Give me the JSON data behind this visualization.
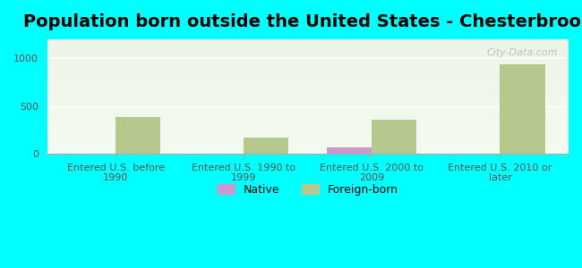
{
  "title": "Population born outside the United States - Chesterbrook",
  "categories": [
    "Entered U.S. before\n1990",
    "Entered U.S. 1990 to\n1999",
    "Entered U.S. 2000 to\n2009",
    "Entered U.S. 2010 or\nlater"
  ],
  "native_values": [
    0,
    0,
    65,
    0
  ],
  "foreign_values": [
    390,
    175,
    355,
    935
  ],
  "native_color": "#cc99cc",
  "foreign_color": "#b5c98e",
  "background_color": "#00ffff",
  "plot_bg_top": "#e8f0e0",
  "plot_bg_bottom": "#f5faf0",
  "ylim": [
    0,
    1200
  ],
  "yticks": [
    0,
    500,
    1000
  ],
  "bar_width": 0.35,
  "title_fontsize": 14,
  "tick_fontsize": 8,
  "legend_labels": [
    "Native",
    "Foreign-born"
  ],
  "watermark": "City-Data.com"
}
